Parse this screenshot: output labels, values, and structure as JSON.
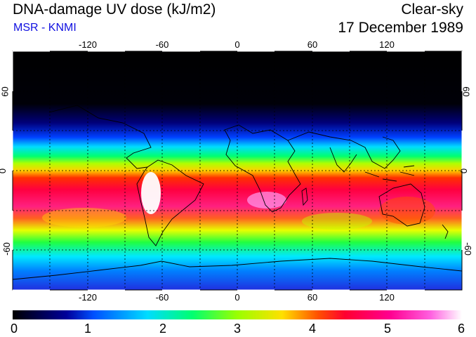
{
  "header": {
    "title": "DNA-damage UV dose (kJ/m2)",
    "subtitle": "MSR - KNMI",
    "condition": "Clear-sky",
    "date": "17 December 1989"
  },
  "axes": {
    "lon_ticks": [
      "-120",
      "-60",
      "0",
      "60",
      "120"
    ],
    "lat_ticks": [
      "60",
      "0",
      "-60"
    ]
  },
  "colorbar": {
    "labels": [
      "0",
      "1",
      "2",
      "3",
      "4",
      "5",
      "6"
    ],
    "min": 0,
    "max": 6,
    "unit": "kJ/m2"
  },
  "colors": {
    "subtitle": "#1010e0",
    "scale": [
      "#000000",
      "#00009a",
      "#0050ff",
      "#00dcff",
      "#00ff70",
      "#9aff00",
      "#ffe000",
      "#ff5000",
      "#ff0050",
      "#ff40d0",
      "#ffffff"
    ]
  }
}
